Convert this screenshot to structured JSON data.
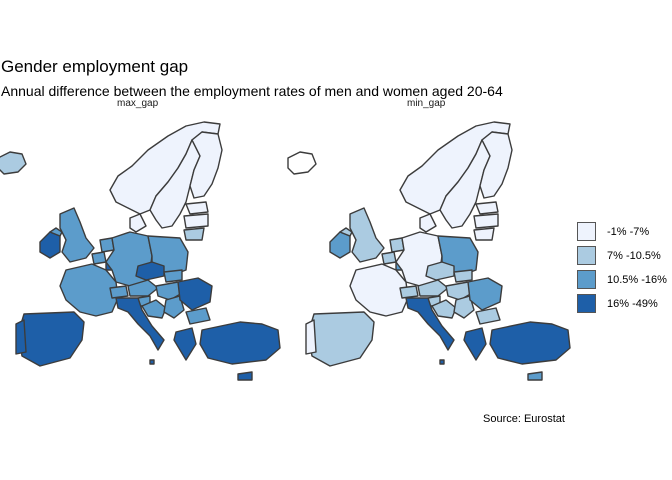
{
  "title": "Gender employment gap",
  "subtitle": "Annual difference between the employment rates of men and women aged 20-64",
  "caption": "Source: Eurostat",
  "panels": {
    "left": "max_gap",
    "right": "min_gap"
  },
  "legend": [
    {
      "label": "-1% -7%",
      "color": "#eef3fd"
    },
    {
      "label": "7% -10.5%",
      "color": "#abcbe1"
    },
    {
      "label": "10.5% -16%",
      "color": "#5c9ccb"
    },
    {
      "label": "16% -49%",
      "color": "#1e5fa8"
    }
  ],
  "chart_data": {
    "type": "choropleth",
    "legend_placement": "right",
    "classes": [
      "-1% -7%",
      "7% -10.5%",
      "10.5% -16%",
      "16% -49%"
    ],
    "max_gap": {
      "Iceland": "7% -10.5%",
      "Norway": "-1% -7%",
      "Sweden": "-1% -7%",
      "Finland": "-1% -7%",
      "Estonia": "-1% -7%",
      "Latvia": "-1% -7%",
      "Lithuania": "7% -10.5%",
      "Ireland": "16% -49%",
      "Northern Ireland": "10.5% -16%",
      "United Kingdom": "10.5% -16%",
      "Denmark": "-1% -7%",
      "Netherlands": "10.5% -16%",
      "Belgium": "10.5% -16%",
      "Luxembourg": "16% -49%",
      "Germany": "10.5% -16%",
      "Poland": "10.5% -16%",
      "France": "10.5% -16%",
      "Switzerland": "10.5% -16%",
      "Austria": "10.5% -16%",
      "Czechia": "16% -49%",
      "Slovakia": "10.5% -16%",
      "Hungary": "10.5% -16%",
      "Slovenia": "10.5% -16%",
      "Croatia": "10.5% -16%",
      "Serbia": "10.5% -16%",
      "Romania": "16% -49%",
      "Bulgaria": "10.5% -16%",
      "Italy": "16% -49%",
      "Greece": "16% -49%",
      "Spain": "16% -49%",
      "Portugal": "16% -49%",
      "Turkey": "16% -49%",
      "Cyprus": "16% -49%",
      "Malta": "16% -49%"
    },
    "min_gap": {
      "Norway": "-1% -7%",
      "Sweden": "-1% -7%",
      "Finland": "-1% -7%",
      "Estonia": "-1% -7%",
      "Latvia": "-1% -7%",
      "Lithuania": "-1% -7%",
      "Ireland": "10.5% -16%",
      "Northern Ireland": "7% -10.5%",
      "United Kingdom": "7% -10.5%",
      "Denmark": "-1% -7%",
      "Netherlands": "7% -10.5%",
      "Belgium": "7% -10.5%",
      "Luxembourg": "10.5% -16%",
      "Germany": "-1% -7%",
      "Poland": "10.5% -16%",
      "France": "-1% -7%",
      "Switzerland": "7% -10.5%",
      "Austria": "7% -10.5%",
      "Czechia": "7% -10.5%",
      "Slovakia": "7% -10.5%",
      "Hungary": "7% -10.5%",
      "Slovenia": "7% -10.5%",
      "Croatia": "7% -10.5%",
      "Serbia": "7% -10.5%",
      "Romania": "10.5% -16%",
      "Bulgaria": "7% -10.5%",
      "Italy": "16% -49%",
      "Greece": "16% -49%",
      "Spain": "7% -10.5%",
      "Portugal": "-1% -7%",
      "Turkey": "16% -49%",
      "Cyprus": "10.5% -16%",
      "Malta": "16% -49%"
    }
  }
}
